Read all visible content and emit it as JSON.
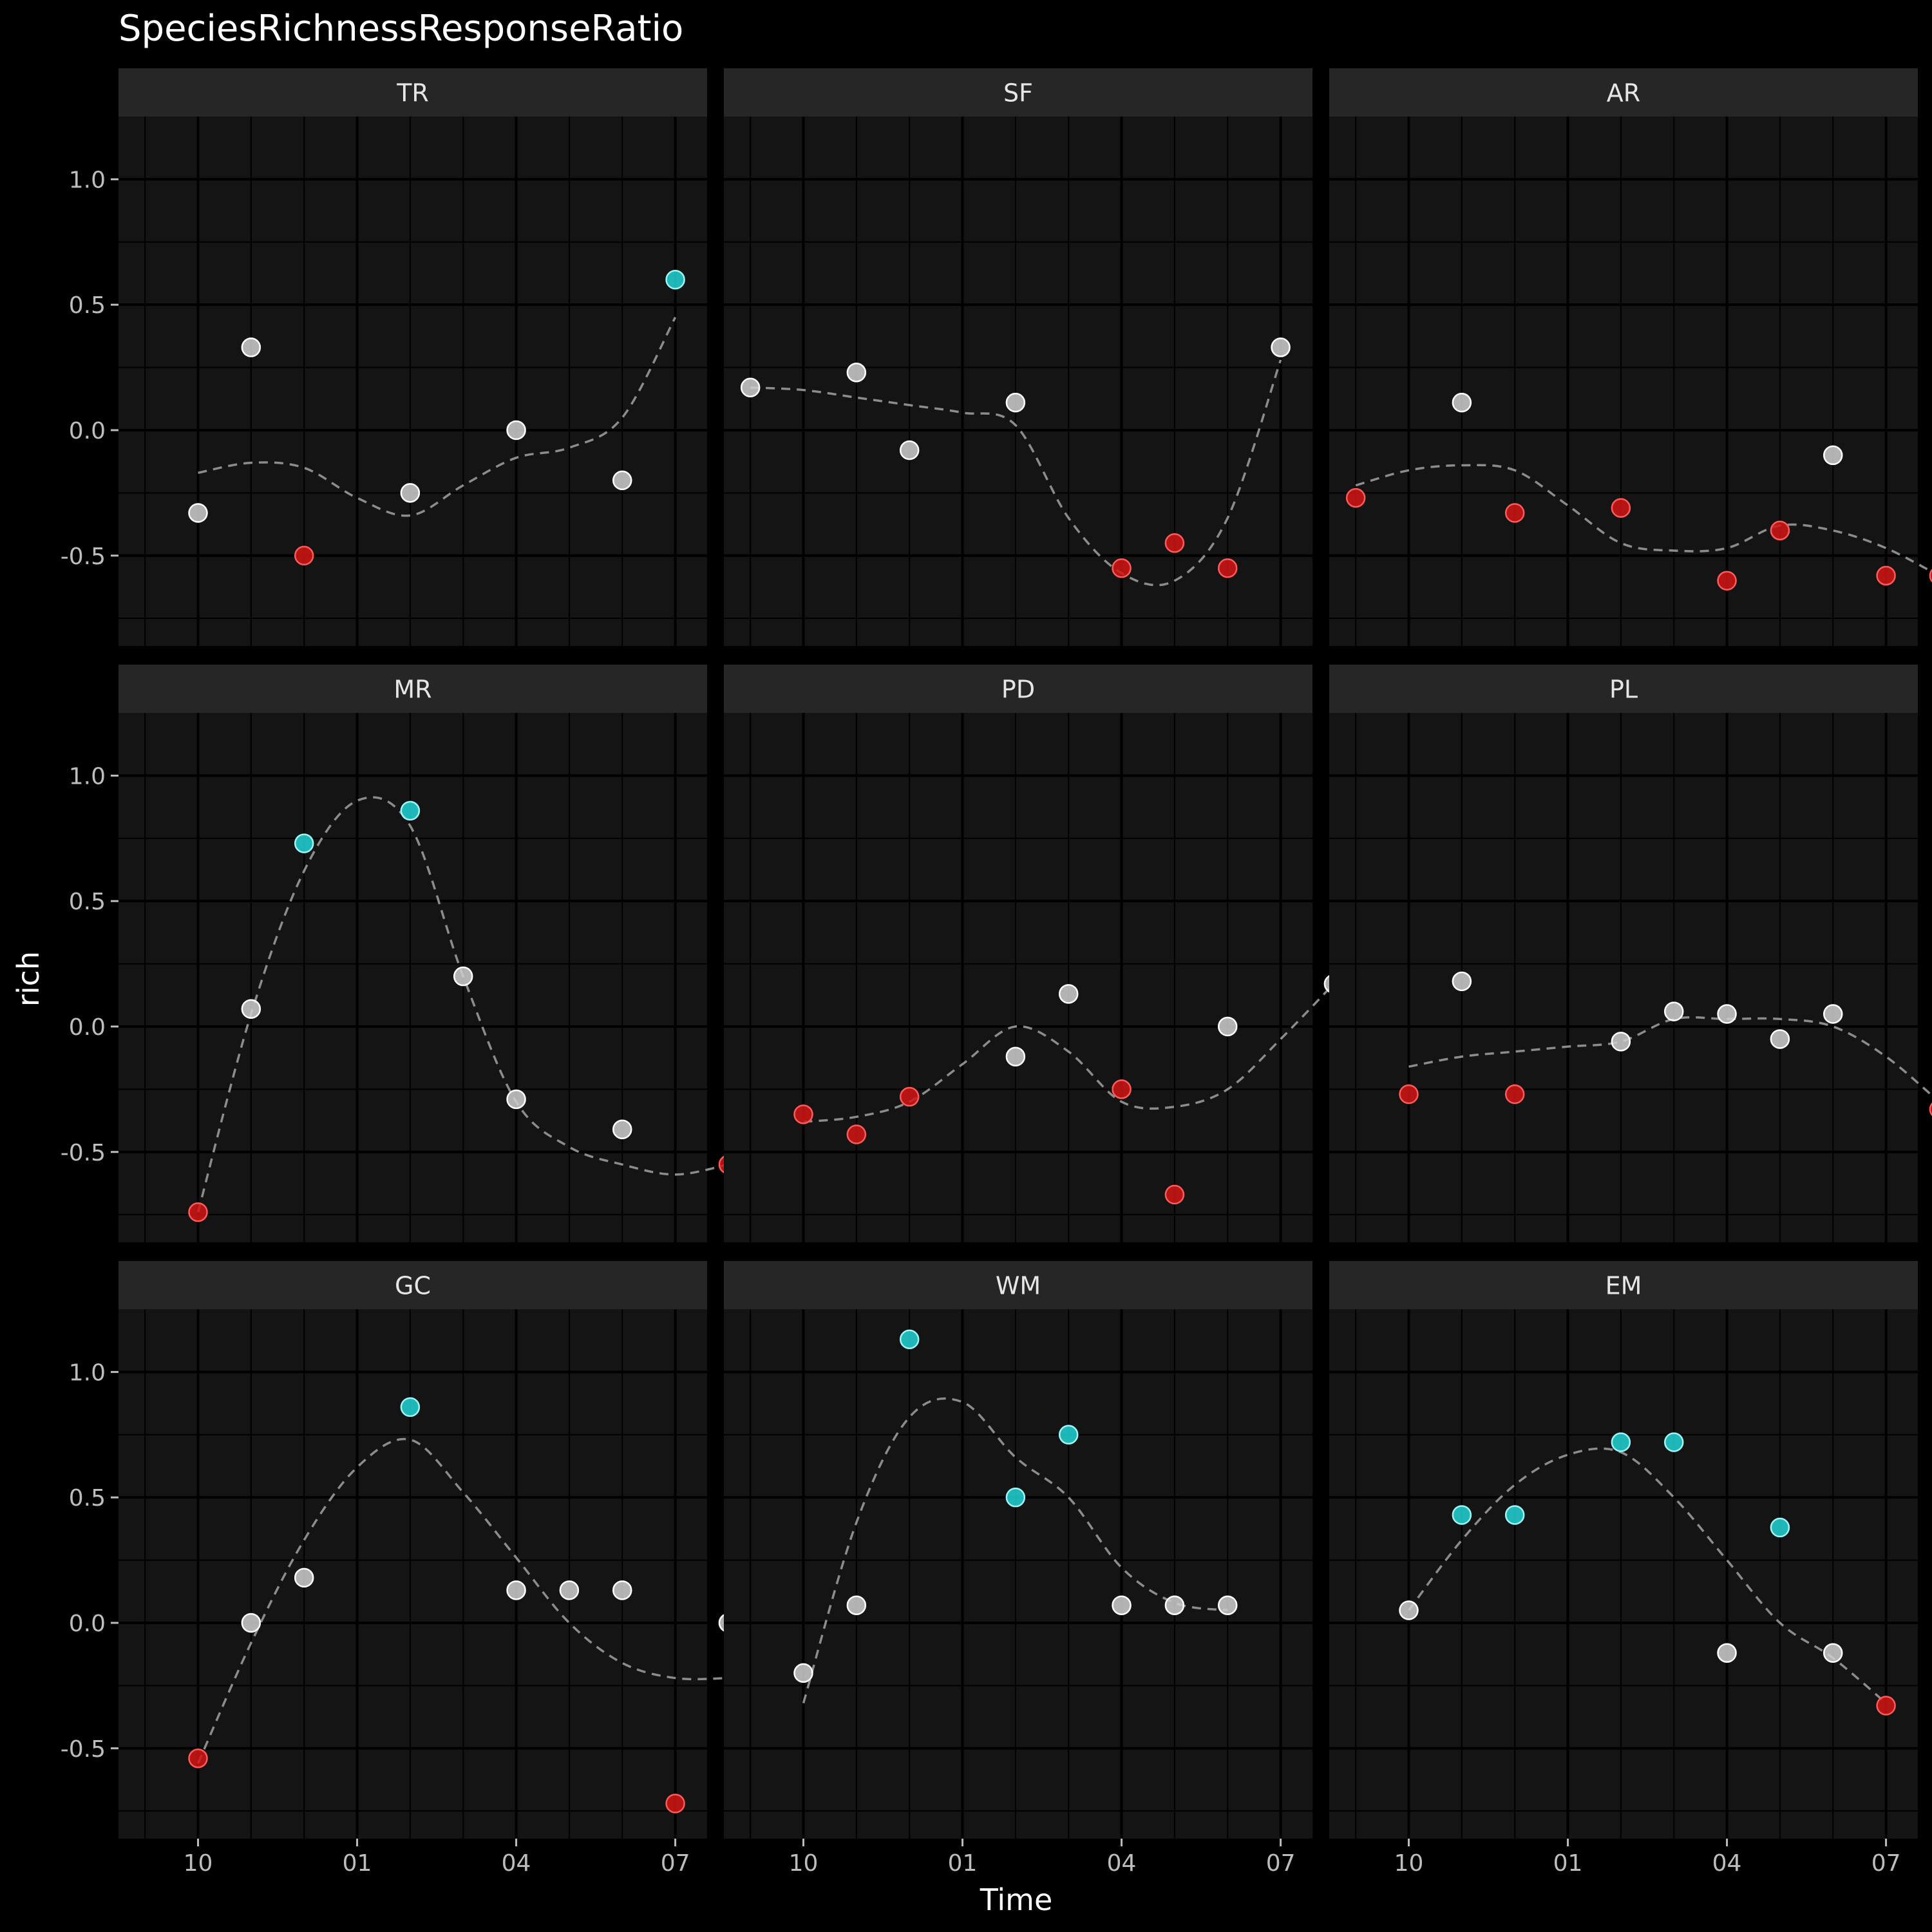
{
  "chart_data": {
    "type": "scatter",
    "title": "SpeciesRichnessResponseRatio",
    "xlabel": "Time",
    "ylabel": "rich",
    "x_tick_labels": [
      "10",
      "01",
      "04",
      "07"
    ],
    "x_tick_months": [
      10,
      13,
      16,
      19
    ],
    "y_ticks": [
      1.0,
      0.5,
      0.0,
      -0.5
    ],
    "y_tick_labels": [
      "1.0",
      "0.5",
      "0.0",
      "-0.5"
    ],
    "xlim": [
      8.5,
      19.6
    ],
    "ylim": [
      -0.86,
      1.25
    ],
    "grid": true,
    "colors": {
      "background": "#000000",
      "panel": "#141414",
      "strip": "#262626",
      "grid_major": "#000000",
      "grid_minor": "#000000",
      "point_neutral": "#cfcfcf",
      "point_positive": "#21d3d3",
      "point_negative": "#d41414",
      "smooth_line": "#8c8c8c",
      "text": "#ffffff",
      "tick_text": "#bdbdbd"
    },
    "point_categories": [
      "neutral",
      "positive",
      "negative"
    ],
    "panels": [
      {
        "name": "TR",
        "points": [
          [
            10,
            -0.33,
            "neutral"
          ],
          [
            11,
            0.33,
            "neutral"
          ],
          [
            12,
            -0.5,
            "negative"
          ],
          [
            14,
            -0.25,
            "neutral"
          ],
          [
            16,
            0.0,
            "neutral"
          ],
          [
            18,
            -0.2,
            "neutral"
          ],
          [
            19,
            0.6,
            "positive"
          ]
        ],
        "smooth": [
          [
            10,
            -0.17
          ],
          [
            11,
            -0.13
          ],
          [
            12,
            -0.15
          ],
          [
            13,
            -0.27
          ],
          [
            14,
            -0.34
          ],
          [
            15,
            -0.22
          ],
          [
            16,
            -0.11
          ],
          [
            17,
            -0.07
          ],
          [
            18,
            0.05
          ],
          [
            19,
            0.45
          ]
        ]
      },
      {
        "name": "SF",
        "points": [
          [
            9,
            0.17,
            "neutral"
          ],
          [
            11,
            0.23,
            "neutral"
          ],
          [
            12,
            -0.08,
            "neutral"
          ],
          [
            14,
            0.11,
            "neutral"
          ],
          [
            16,
            -0.55,
            "negative"
          ],
          [
            17,
            -0.45,
            "negative"
          ],
          [
            18,
            -0.55,
            "negative"
          ],
          [
            19,
            0.33,
            "neutral"
          ]
        ],
        "smooth": [
          [
            9,
            0.17
          ],
          [
            10,
            0.16
          ],
          [
            11,
            0.13
          ],
          [
            12,
            0.1
          ],
          [
            13,
            0.07
          ],
          [
            14,
            0.02
          ],
          [
            15,
            -0.35
          ],
          [
            16,
            -0.57
          ],
          [
            17,
            -0.6
          ],
          [
            18,
            -0.35
          ],
          [
            19,
            0.28
          ]
        ]
      },
      {
        "name": "AR",
        "points": [
          [
            9,
            -0.27,
            "negative"
          ],
          [
            11,
            0.11,
            "neutral"
          ],
          [
            12,
            -0.33,
            "negative"
          ],
          [
            14,
            -0.31,
            "negative"
          ],
          [
            16,
            -0.6,
            "negative"
          ],
          [
            17,
            -0.4,
            "negative"
          ],
          [
            18,
            -0.1,
            "neutral"
          ],
          [
            19,
            -0.58,
            "negative"
          ],
          [
            20,
            -0.58,
            "negative"
          ]
        ],
        "smooth": [
          [
            9,
            -0.22
          ],
          [
            10,
            -0.16
          ],
          [
            11,
            -0.14
          ],
          [
            12,
            -0.16
          ],
          [
            13,
            -0.3
          ],
          [
            14,
            -0.45
          ],
          [
            15,
            -0.48
          ],
          [
            16,
            -0.47
          ],
          [
            17,
            -0.38
          ],
          [
            18,
            -0.4
          ],
          [
            19,
            -0.47
          ],
          [
            20,
            -0.58
          ]
        ]
      },
      {
        "name": "MR",
        "points": [
          [
            10,
            -0.74,
            "negative"
          ],
          [
            11,
            0.07,
            "neutral"
          ],
          [
            12,
            0.73,
            "positive"
          ],
          [
            14,
            0.86,
            "positive"
          ],
          [
            15,
            0.2,
            "neutral"
          ],
          [
            16,
            -0.29,
            "neutral"
          ],
          [
            18,
            -0.41,
            "neutral"
          ],
          [
            20,
            -0.55,
            "negative"
          ]
        ],
        "smooth": [
          [
            10,
            -0.74
          ],
          [
            11,
            0.05
          ],
          [
            12,
            0.62
          ],
          [
            13,
            0.9
          ],
          [
            14,
            0.8
          ],
          [
            15,
            0.2
          ],
          [
            16,
            -0.3
          ],
          [
            17,
            -0.48
          ],
          [
            18,
            -0.55
          ],
          [
            19,
            -0.59
          ],
          [
            20,
            -0.55
          ]
        ]
      },
      {
        "name": "PD",
        "points": [
          [
            10,
            -0.35,
            "negative"
          ],
          [
            11,
            -0.43,
            "negative"
          ],
          [
            12,
            -0.28,
            "negative"
          ],
          [
            14,
            -0.12,
            "neutral"
          ],
          [
            15,
            0.13,
            "neutral"
          ],
          [
            16,
            -0.25,
            "negative"
          ],
          [
            17,
            -0.67,
            "negative"
          ],
          [
            18,
            0.0,
            "neutral"
          ],
          [
            20,
            0.17,
            "neutral"
          ]
        ],
        "smooth": [
          [
            10,
            -0.38
          ],
          [
            11,
            -0.36
          ],
          [
            12,
            -0.3
          ],
          [
            13,
            -0.15
          ],
          [
            14,
            0.0
          ],
          [
            15,
            -0.1
          ],
          [
            16,
            -0.3
          ],
          [
            17,
            -0.32
          ],
          [
            18,
            -0.25
          ],
          [
            19,
            -0.05
          ],
          [
            20,
            0.17
          ]
        ]
      },
      {
        "name": "PL",
        "points": [
          [
            10,
            -0.27,
            "negative"
          ],
          [
            11,
            0.18,
            "neutral"
          ],
          [
            12,
            -0.27,
            "negative"
          ],
          [
            14,
            -0.06,
            "neutral"
          ],
          [
            15,
            0.06,
            "neutral"
          ],
          [
            16,
            0.05,
            "neutral"
          ],
          [
            17,
            -0.05,
            "neutral"
          ],
          [
            18,
            0.05,
            "neutral"
          ],
          [
            20,
            -0.33,
            "negative"
          ]
        ],
        "smooth": [
          [
            10,
            -0.16
          ],
          [
            11,
            -0.12
          ],
          [
            12,
            -0.1
          ],
          [
            13,
            -0.08
          ],
          [
            14,
            -0.06
          ],
          [
            15,
            0.03
          ],
          [
            16,
            0.03
          ],
          [
            17,
            0.03
          ],
          [
            18,
            0.0
          ],
          [
            19,
            -0.12
          ],
          [
            20,
            -0.3
          ]
        ]
      },
      {
        "name": "GC",
        "points": [
          [
            10,
            -0.54,
            "negative"
          ],
          [
            11,
            0.0,
            "neutral"
          ],
          [
            12,
            0.18,
            "neutral"
          ],
          [
            14,
            0.86,
            "positive"
          ],
          [
            16,
            0.13,
            "neutral"
          ],
          [
            17,
            0.13,
            "neutral"
          ],
          [
            18,
            0.13,
            "neutral"
          ],
          [
            19,
            -0.72,
            "negative"
          ],
          [
            20,
            0.0,
            "neutral"
          ]
        ],
        "smooth": [
          [
            10,
            -0.56
          ],
          [
            11,
            -0.08
          ],
          [
            12,
            0.33
          ],
          [
            13,
            0.62
          ],
          [
            14,
            0.73
          ],
          [
            15,
            0.52
          ],
          [
            16,
            0.26
          ],
          [
            17,
            0.0
          ],
          [
            18,
            -0.16
          ],
          [
            19,
            -0.22
          ],
          [
            20,
            -0.22
          ]
        ]
      },
      {
        "name": "WM",
        "points": [
          [
            10,
            -0.2,
            "neutral"
          ],
          [
            11,
            0.07,
            "neutral"
          ],
          [
            12,
            1.13,
            "positive"
          ],
          [
            14,
            0.5,
            "positive"
          ],
          [
            15,
            0.75,
            "positive"
          ],
          [
            16,
            0.07,
            "neutral"
          ],
          [
            17,
            0.07,
            "neutral"
          ],
          [
            18,
            0.07,
            "neutral"
          ]
        ],
        "smooth": [
          [
            10,
            -0.32
          ],
          [
            11,
            0.4
          ],
          [
            12,
            0.82
          ],
          [
            13,
            0.88
          ],
          [
            14,
            0.66
          ],
          [
            15,
            0.5
          ],
          [
            16,
            0.22
          ],
          [
            17,
            0.08
          ],
          [
            18,
            0.05
          ]
        ]
      },
      {
        "name": "EM",
        "points": [
          [
            10,
            0.05,
            "neutral"
          ],
          [
            11,
            0.43,
            "positive"
          ],
          [
            12,
            0.43,
            "positive"
          ],
          [
            14,
            0.72,
            "positive"
          ],
          [
            15,
            0.72,
            "positive"
          ],
          [
            16,
            -0.12,
            "neutral"
          ],
          [
            17,
            0.38,
            "positive"
          ],
          [
            18,
            -0.12,
            "neutral"
          ],
          [
            19,
            -0.33,
            "negative"
          ]
        ],
        "smooth": [
          [
            10,
            0.05
          ],
          [
            11,
            0.33
          ],
          [
            12,
            0.55
          ],
          [
            13,
            0.67
          ],
          [
            14,
            0.68
          ],
          [
            15,
            0.5
          ],
          [
            16,
            0.25
          ],
          [
            17,
            0.0
          ],
          [
            18,
            -0.14
          ],
          [
            19,
            -0.32
          ]
        ]
      }
    ]
  }
}
